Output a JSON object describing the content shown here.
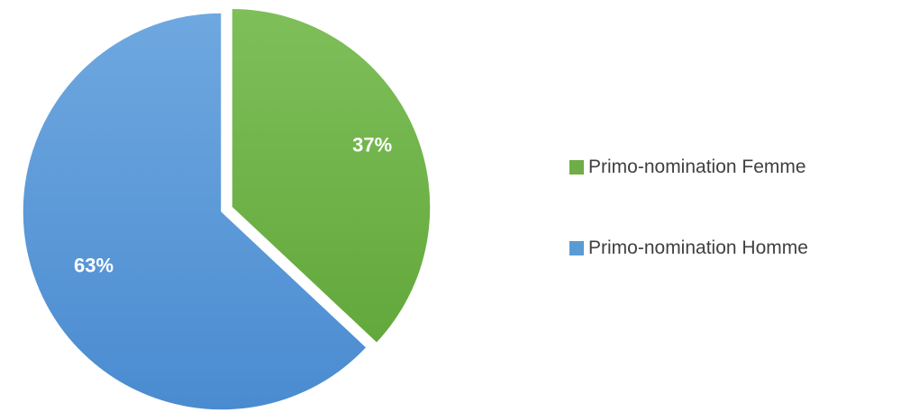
{
  "chart_data": {
    "type": "pie",
    "categories": [
      "Primo-nomination Femme",
      "Primo-nomination Homme"
    ],
    "values": [
      37,
      63
    ],
    "labels": [
      "37%",
      "63%"
    ],
    "colors": [
      "#6fad46",
      "#5b9bd5"
    ],
    "legend": "right",
    "exploded": true
  }
}
